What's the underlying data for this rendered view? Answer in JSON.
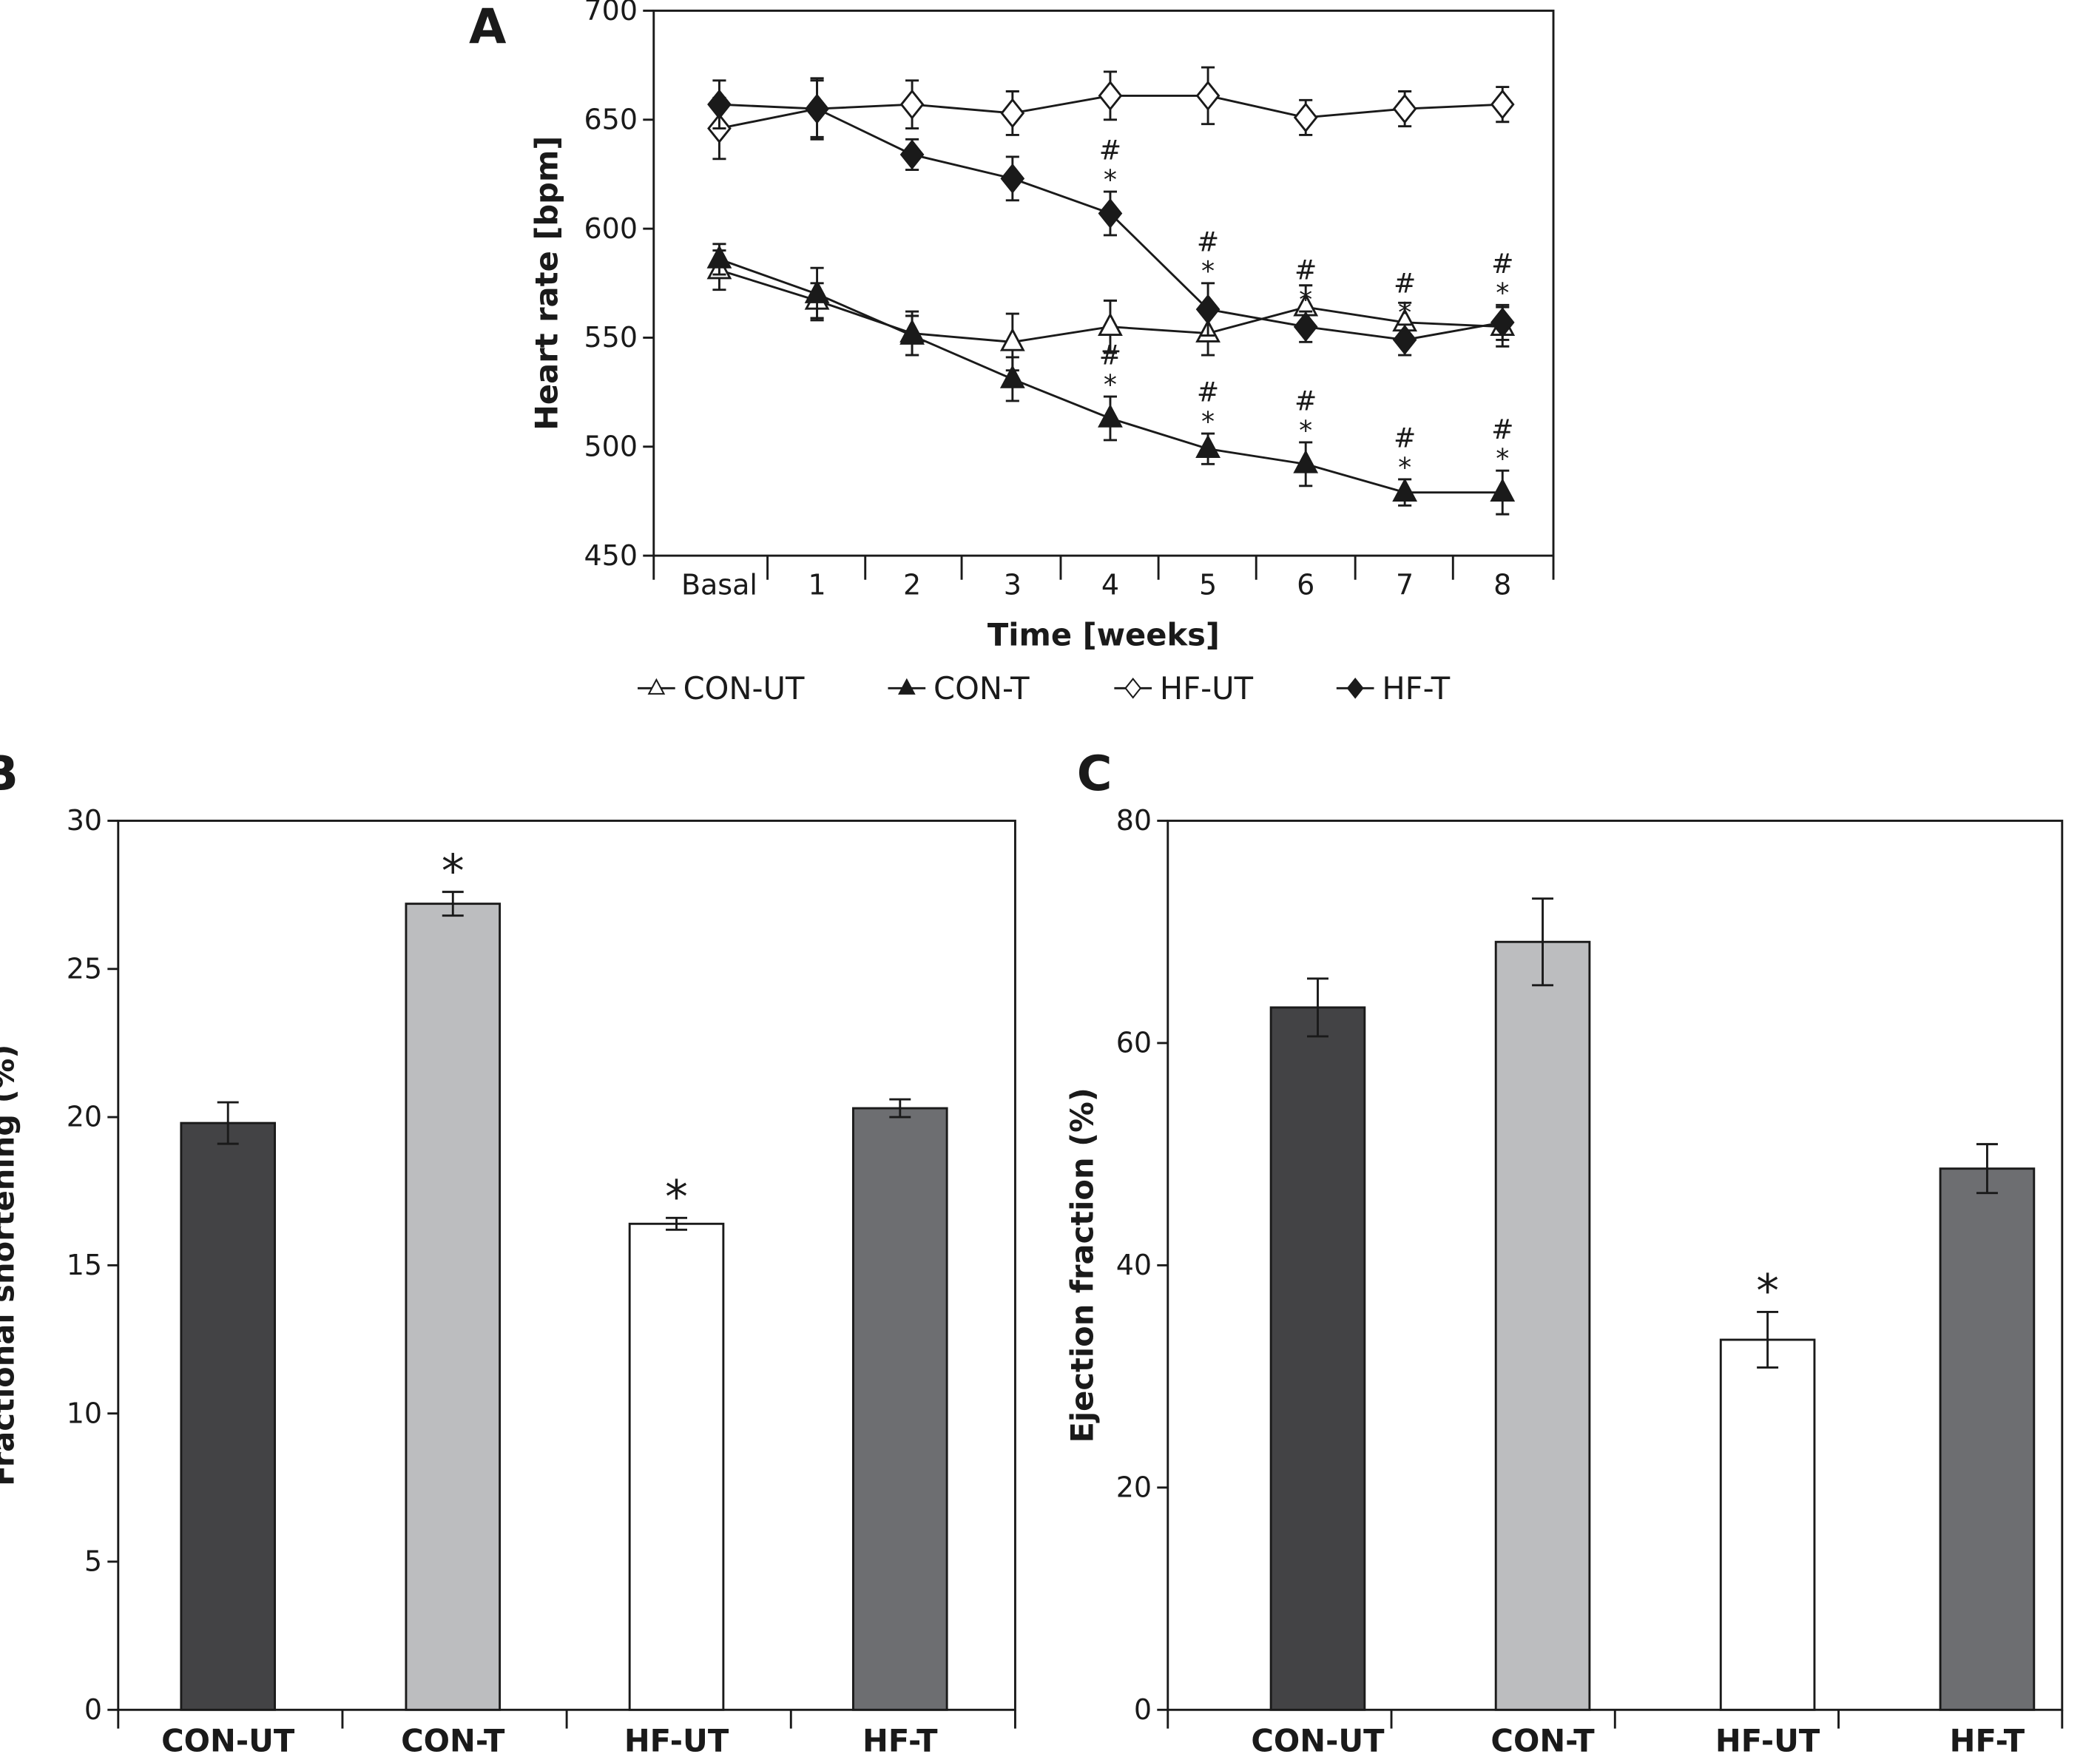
{
  "chart_data": [
    {
      "panel": "A",
      "type": "line",
      "xlabel": "Time [weeks]",
      "ylabel": "Heart rate [bpm]",
      "categories": [
        "Basal",
        "1",
        "2",
        "3",
        "4",
        "5",
        "6",
        "7",
        "8"
      ],
      "ylim": [
        450,
        700
      ],
      "yticks": [
        450,
        500,
        550,
        600,
        650,
        700
      ],
      "grid": false,
      "legend_position": "bottom",
      "series": [
        {
          "name": "CON-UT",
          "marker": "open-triangle",
          "values": [
            581,
            567,
            552,
            548,
            555,
            552,
            564,
            557,
            555
          ],
          "errors": [
            9,
            8,
            10,
            13,
            12,
            10,
            10,
            9,
            9
          ],
          "annotations": [
            "",
            "",
            "",
            "",
            "",
            "",
            "",
            "",
            ""
          ]
        },
        {
          "name": "CON-T",
          "marker": "filled-triangle",
          "values": [
            586,
            570,
            551,
            531,
            513,
            499,
            492,
            479,
            479
          ],
          "errors": [
            7,
            12,
            9,
            10,
            10,
            7,
            10,
            6,
            10
          ],
          "annotations": [
            "",
            "",
            "",
            "",
            "#*",
            "#*",
            "#*",
            "#*",
            "#*"
          ]
        },
        {
          "name": "HF-UT",
          "marker": "open-diamond",
          "values": [
            646,
            655,
            657,
            653,
            661,
            661,
            651,
            655,
            657
          ],
          "errors": [
            14,
            13,
            11,
            10,
            11,
            13,
            8,
            8,
            8
          ],
          "annotations": [
            "",
            "",
            "",
            "",
            "",
            "",
            "",
            "",
            ""
          ]
        },
        {
          "name": "HF-T",
          "marker": "filled-diamond",
          "values": [
            657,
            655,
            634,
            623,
            607,
            563,
            555,
            549,
            557
          ],
          "errors": [
            11,
            14,
            7,
            10,
            10,
            12,
            7,
            7,
            8
          ],
          "annotations": [
            "",
            "",
            "",
            "",
            "#*",
            "#*",
            "#*",
            "#*",
            "#*"
          ]
        }
      ]
    },
    {
      "panel": "B",
      "type": "bar",
      "ylabel": "Fractional shortening (%)",
      "categories": [
        "CON-UT",
        "CON-T",
        "HF-UT",
        "HF-T"
      ],
      "values": [
        19.8,
        27.2,
        16.4,
        20.3
      ],
      "errors": [
        0.7,
        0.4,
        0.2,
        0.3
      ],
      "annotations": [
        "",
        "*",
        "*",
        ""
      ],
      "colors": [
        "#434345",
        "#bcbdbf",
        "#ffffff",
        "#6d6e71"
      ],
      "ylim": [
        0,
        30
      ],
      "yticks": [
        0,
        5,
        10,
        15,
        20,
        25,
        30
      ]
    },
    {
      "panel": "C",
      "type": "bar",
      "ylabel": "Ejection fraction (%)",
      "categories": [
        "CON-UT",
        "CON-T",
        "HF-UT",
        "HF-T"
      ],
      "values": [
        63.2,
        69.1,
        33.3,
        48.7
      ],
      "errors": [
        2.6,
        3.9,
        2.5,
        2.2
      ],
      "annotations": [
        "",
        "",
        "*",
        ""
      ],
      "colors": [
        "#434345",
        "#bcbdbf",
        "#ffffff",
        "#6d6e71"
      ],
      "ylim": [
        0,
        80
      ],
      "yticks": [
        0,
        20,
        40,
        60,
        80
      ]
    }
  ]
}
